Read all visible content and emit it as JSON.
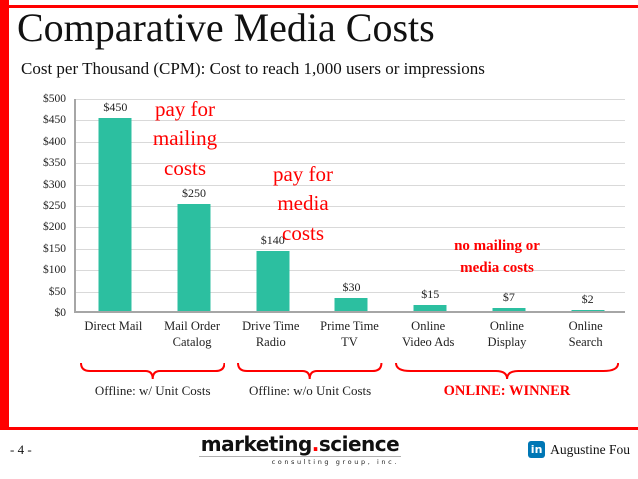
{
  "slide": {
    "title": "Comparative Media Costs",
    "subtitle": "Cost per Thousand (CPM): Cost to reach 1,000 users or impressions",
    "page_number": "- 4 -",
    "footer": {
      "logo_main": "marketing",
      "logo_dot": ".",
      "logo_secondary": "science",
      "logo_tagline": "consulting group, inc.",
      "linkedin_icon": "in",
      "credit": "Augustine Fou"
    }
  },
  "annotations": {
    "mailing": {
      "text": "pay for\nmailing\ncosts"
    },
    "media": {
      "text": "pay for\nmedia\ncosts"
    },
    "none": {
      "text": "no mailing or\nmedia costs"
    }
  },
  "groups": [
    {
      "label": "Offline: w/ Unit Costs",
      "start": 0,
      "end": 1,
      "label_color": "#222222",
      "bold": false
    },
    {
      "label": "Offline: w/o Unit Costs",
      "start": 2,
      "end": 3,
      "label_color": "#222222",
      "bold": false
    },
    {
      "label": "ONLINE: WINNER",
      "start": 4,
      "end": 6,
      "label_color": "#ff0000",
      "bold": true
    }
  ],
  "chart_data": {
    "type": "bar",
    "title": "Cost per Thousand (CPM)",
    "categories": [
      "Direct Mail",
      "Mail Order Catalog",
      "Drive Time Radio",
      "Prime Time TV",
      "Online Video Ads",
      "Online Display",
      "Online Search"
    ],
    "category_labels": [
      "Direct Mail",
      "Mail Order\nCatalog",
      "Drive Time\nRadio",
      "Prime Time\nTV",
      "Online\nVideo Ads",
      "Online\nDisplay",
      "Online\nSearch"
    ],
    "values": [
      450,
      250,
      140,
      30,
      15,
      7,
      2
    ],
    "value_labels": [
      "$450",
      "$250",
      "$140",
      "$30",
      "$15",
      "$7",
      "$2"
    ],
    "xlabel": "",
    "ylabel": "",
    "ylim": [
      0,
      500
    ],
    "ytick_step": 50,
    "yticks": [
      "$0",
      "$50",
      "$100",
      "$150",
      "$200",
      "$250",
      "$300",
      "$350",
      "$400",
      "$450",
      "$500"
    ],
    "bar_color": "#2cbfa0",
    "grid": true,
    "legend": false
  },
  "colors": {
    "accent_red": "#ff0000",
    "bar_teal": "#2cbfa0",
    "gridline_gray": "#d9d9d9",
    "linkedin_blue": "#0077b5"
  }
}
